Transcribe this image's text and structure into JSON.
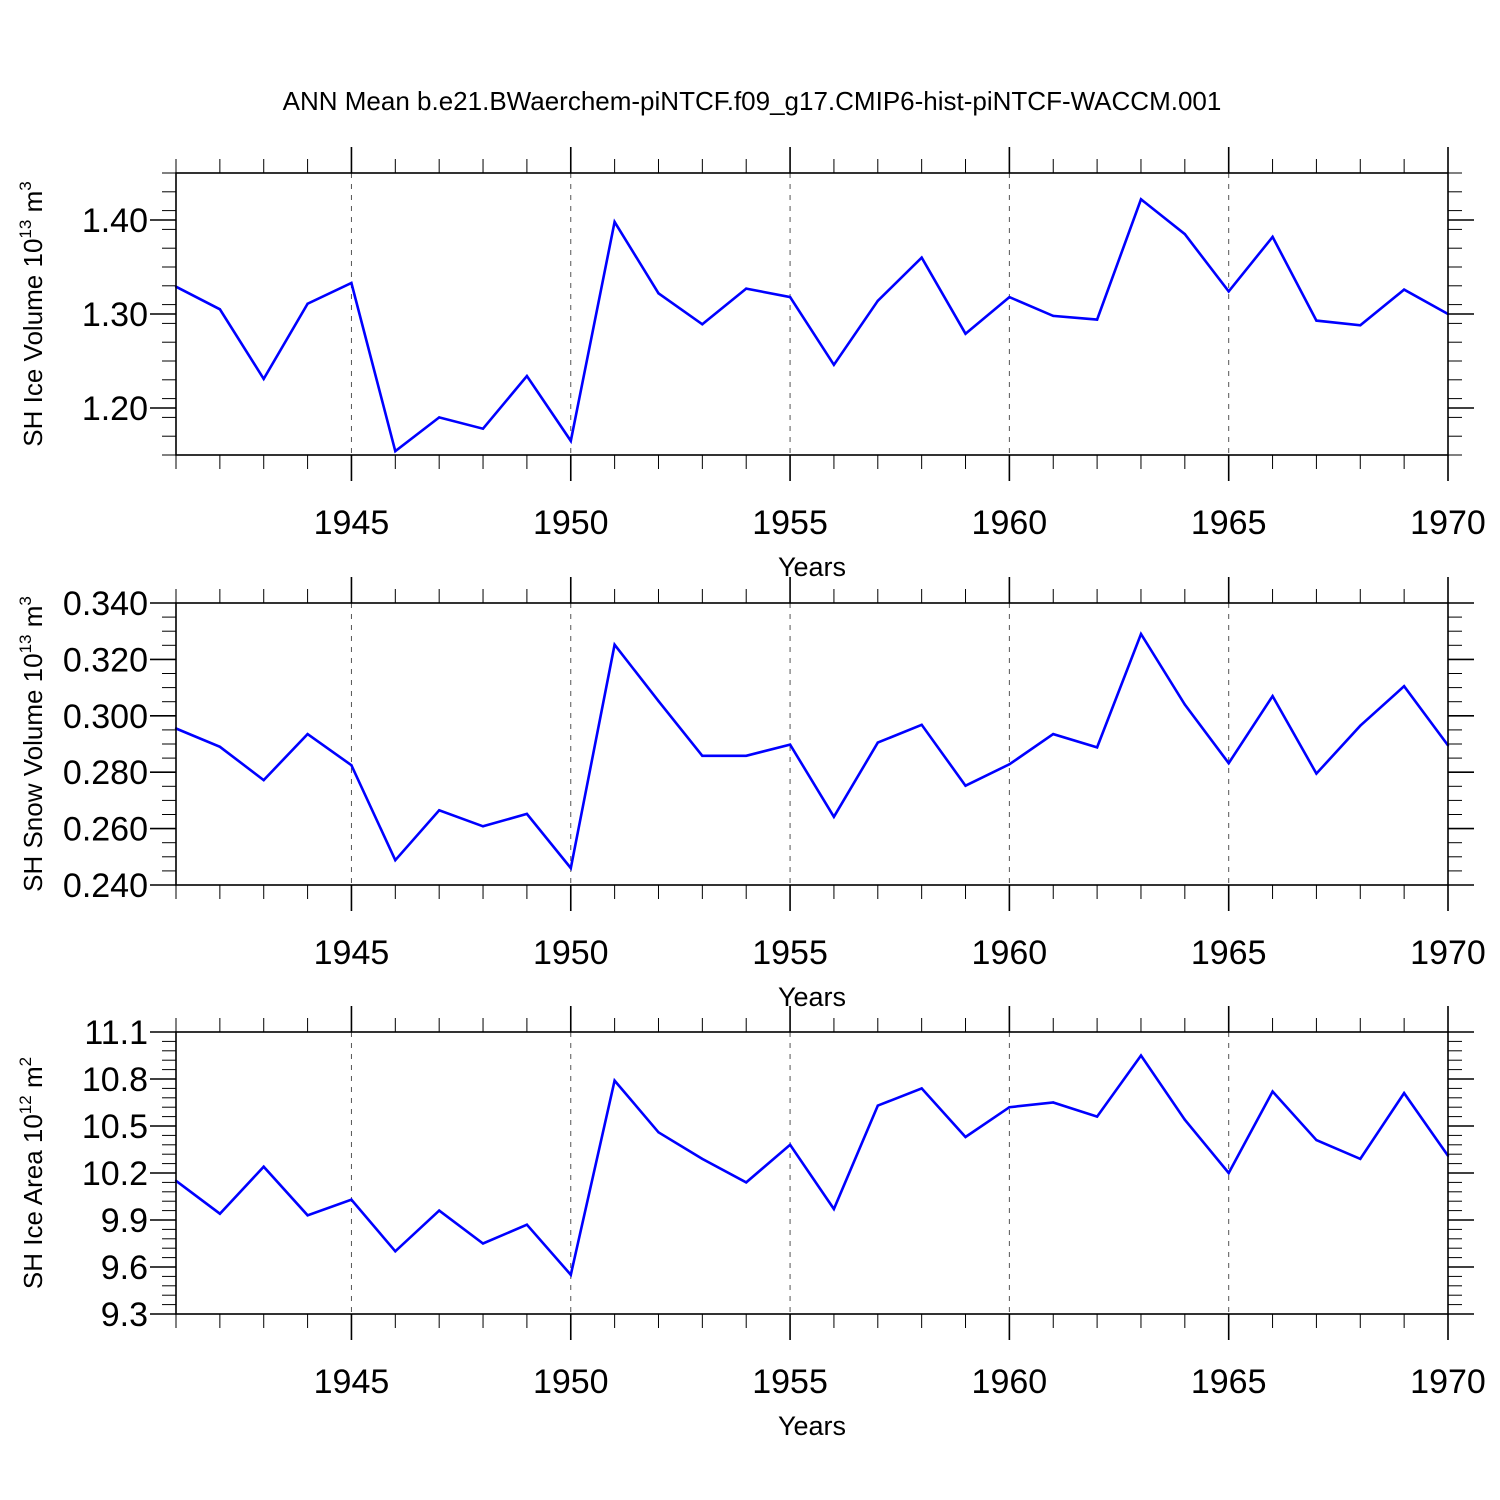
{
  "title": "ANN Mean b.e21.BWaerchem-piNTCF.f09_g17.CMIP6-hist-piNTCF-WACCM.001",
  "line_color": "#0000ff",
  "chart_data": [
    {
      "type": "line",
      "ylabel": "SH Ice Volume 10",
      "ylabel_exp": "13",
      "ylabel_unit": " m",
      "ylabel_unit_exp": "3",
      "xlabel": "Years",
      "xlim": [
        1941,
        1970
      ],
      "ylim": [
        1.15,
        1.45
      ],
      "yticks": [
        1.2,
        1.3,
        1.4
      ],
      "ytick_labels": [
        "1.20",
        "1.30",
        "1.40"
      ],
      "yminor_step": 0.02,
      "xticks": [
        1945,
        1950,
        1955,
        1960,
        1965,
        1970
      ],
      "xtick_labels": [
        "1945",
        "1950",
        "1955",
        "1960",
        "1965",
        "1970"
      ],
      "grid": "vertical-dashed",
      "x": [
        1941,
        1942,
        1943,
        1944,
        1945,
        1946,
        1947,
        1948,
        1949,
        1950,
        1951,
        1952,
        1953,
        1954,
        1955,
        1956,
        1957,
        1958,
        1959,
        1960,
        1961,
        1962,
        1963,
        1964,
        1965,
        1966,
        1967,
        1968,
        1969,
        1970
      ],
      "series": [
        {
          "values": [
            1.329,
            1.305,
            1.231,
            1.311,
            1.333,
            1.154,
            1.19,
            1.178,
            1.234,
            1.165,
            1.398,
            1.322,
            1.289,
            1.327,
            1.318,
            1.246,
            1.314,
            1.36,
            1.279,
            1.318,
            1.298,
            1.294,
            1.422,
            1.385,
            1.324,
            1.382,
            1.293,
            1.288,
            1.326,
            1.3
          ]
        }
      ]
    },
    {
      "type": "line",
      "ylabel": "SH Snow Volume 10",
      "ylabel_exp": "13",
      "ylabel_unit": " m",
      "ylabel_unit_exp": "3",
      "xlabel": "Years",
      "xlim": [
        1941,
        1970
      ],
      "ylim": [
        0.24,
        0.34
      ],
      "yticks": [
        0.24,
        0.26,
        0.28,
        0.3,
        0.32,
        0.34
      ],
      "ytick_labels": [
        "0.240",
        "0.260",
        "0.280",
        "0.300",
        "0.320",
        "0.340"
      ],
      "yminor_step": 0.005,
      "xticks": [
        1945,
        1950,
        1955,
        1960,
        1965,
        1970
      ],
      "xtick_labels": [
        "1945",
        "1950",
        "1955",
        "1960",
        "1965",
        "1970"
      ],
      "grid": "vertical-dashed",
      "x": [
        1941,
        1942,
        1943,
        1944,
        1945,
        1946,
        1947,
        1948,
        1949,
        1950,
        1951,
        1952,
        1953,
        1954,
        1955,
        1956,
        1957,
        1958,
        1959,
        1960,
        1961,
        1962,
        1963,
        1964,
        1965,
        1966,
        1967,
        1968,
        1969,
        1970
      ],
      "series": [
        {
          "values": [
            0.2955,
            0.289,
            0.2772,
            0.2935,
            0.2825,
            0.2488,
            0.2665,
            0.2608,
            0.2652,
            0.246,
            0.3252,
            0.3052,
            0.2858,
            0.2858,
            0.2898,
            0.2642,
            0.2905,
            0.2968,
            0.2752,
            0.2828,
            0.2935,
            0.2888,
            0.329,
            0.304,
            0.2832,
            0.307,
            0.2795,
            0.2965,
            0.3105,
            0.2895
          ]
        }
      ]
    },
    {
      "type": "line",
      "ylabel": "SH Ice Area 10",
      "ylabel_exp": "12",
      "ylabel_unit": " m",
      "ylabel_unit_exp": "2",
      "xlabel": "Years",
      "xlim": [
        1941,
        1970
      ],
      "ylim": [
        9.3,
        11.1
      ],
      "yticks": [
        9.3,
        9.6,
        9.9,
        10.2,
        10.5,
        10.8,
        11.1
      ],
      "ytick_labels": [
        "9.3",
        "9.6",
        "9.9",
        "10.2",
        "10.5",
        "10.8",
        "11.1"
      ],
      "yminor_step": 0.06,
      "xticks": [
        1945,
        1950,
        1955,
        1960,
        1965,
        1970
      ],
      "xtick_labels": [
        "1945",
        "1950",
        "1955",
        "1960",
        "1965",
        "1970"
      ],
      "grid": "vertical-dashed",
      "x": [
        1941,
        1942,
        1943,
        1944,
        1945,
        1946,
        1947,
        1948,
        1949,
        1950,
        1951,
        1952,
        1953,
        1954,
        1955,
        1956,
        1957,
        1958,
        1959,
        1960,
        1961,
        1962,
        1963,
        1964,
        1965,
        1966,
        1967,
        1968,
        1969,
        1970
      ],
      "series": [
        {
          "values": [
            10.15,
            9.94,
            10.24,
            9.93,
            10.03,
            9.7,
            9.96,
            9.75,
            9.87,
            9.55,
            10.79,
            10.46,
            10.29,
            10.14,
            10.38,
            9.97,
            10.63,
            10.74,
            10.43,
            10.62,
            10.65,
            10.56,
            10.95,
            10.54,
            10.2,
            10.72,
            10.41,
            10.29,
            10.71,
            10.31
          ]
        }
      ]
    }
  ]
}
